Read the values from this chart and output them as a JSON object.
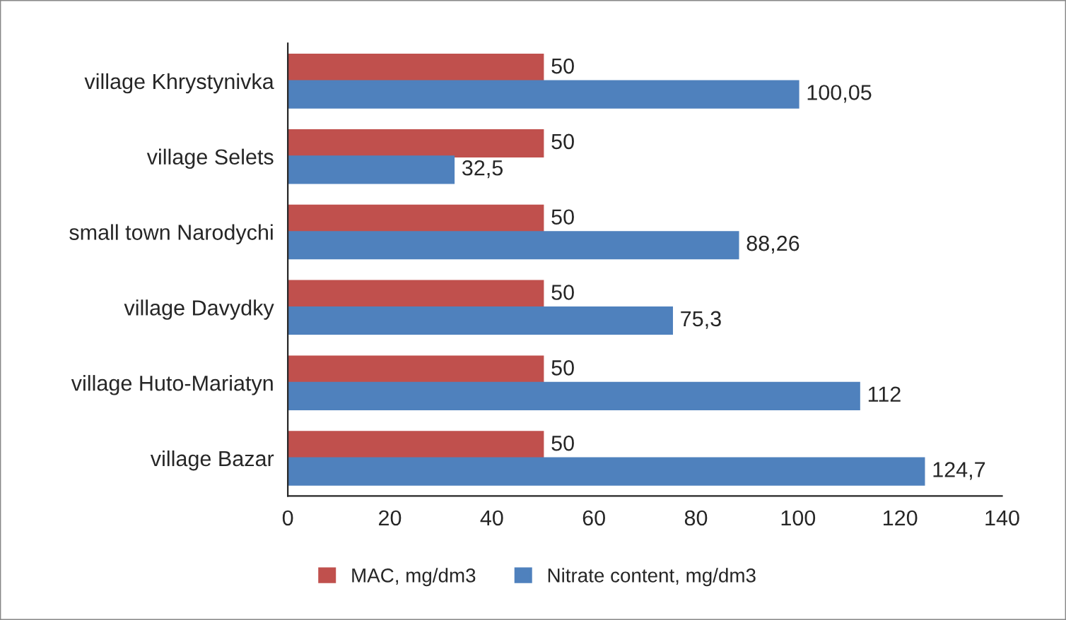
{
  "chart_data": {
    "type": "bar",
    "orientation": "horizontal",
    "categories": [
      "village Khrystynivka",
      "village Selets",
      "small town Narodychi",
      "village Davydky",
      "village Huto-Mariatyn",
      "village Bazar"
    ],
    "series": [
      {
        "name": "MAC, mg/dm3",
        "color": "#c0504d",
        "values": [
          50,
          50,
          50,
          50,
          50,
          50
        ],
        "value_labels": [
          "50",
          "50",
          "50",
          "50",
          "50",
          "50"
        ]
      },
      {
        "name": "Nitrate content, mg/dm3",
        "color": "#4f81bd",
        "values": [
          100.05,
          32.5,
          88.26,
          75.3,
          112,
          124.7
        ],
        "value_labels": [
          "100,05",
          "32,5",
          "88,26",
          "75,3",
          "112",
          "124,7"
        ]
      }
    ],
    "xlim": [
      0,
      140
    ],
    "xticks": [
      0,
      20,
      40,
      60,
      80,
      100,
      120,
      140
    ],
    "grid": false,
    "legend": "bottom"
  }
}
